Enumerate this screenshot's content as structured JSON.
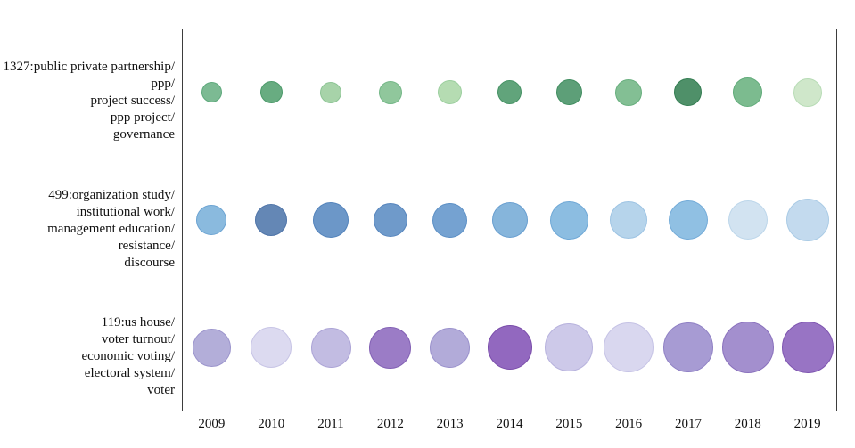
{
  "chart_data": {
    "type": "scatter",
    "subtype": "bubble-timeline",
    "title": "",
    "xlabel": "",
    "ylabel": "",
    "legend": "none",
    "grid": false,
    "frame_color": "#3d3d3d",
    "x_categories": [
      "2009",
      "2010",
      "2011",
      "2012",
      "2013",
      "2014",
      "2015",
      "2016",
      "2017",
      "2018",
      "2019"
    ],
    "rows": [
      {
        "id": "topic-1327",
        "label_lines": [
          "1327:public private partnership/",
          "ppp/",
          "project success/",
          "ppp project/",
          "governance"
        ],
        "color_family": "green",
        "bubbles": [
          {
            "year": "2009",
            "diameter": 23,
            "fill": "#7cba93",
            "stroke": "#5ea97c"
          },
          {
            "year": "2010",
            "diameter": 25,
            "fill": "#68ac81",
            "stroke": "#4c9a6a"
          },
          {
            "year": "2011",
            "diameter": 24,
            "fill": "#a7d3a9",
            "stroke": "#8cc494"
          },
          {
            "year": "2012",
            "diameter": 26,
            "fill": "#90c79c",
            "stroke": "#74b787"
          },
          {
            "year": "2013",
            "diameter": 27,
            "fill": "#b5dcb2",
            "stroke": "#9ccf9f"
          },
          {
            "year": "2014",
            "diameter": 27,
            "fill": "#61a47b",
            "stroke": "#459264"
          },
          {
            "year": "2015",
            "diameter": 29,
            "fill": "#5d9f78",
            "stroke": "#428e61"
          },
          {
            "year": "2016",
            "diameter": 30,
            "fill": "#83bf94",
            "stroke": "#68af7e"
          },
          {
            "year": "2017",
            "diameter": 31,
            "fill": "#4f9069",
            "stroke": "#357e53"
          },
          {
            "year": "2018",
            "diameter": 33,
            "fill": "#7cbb8f",
            "stroke": "#60ab79"
          },
          {
            "year": "2019",
            "diameter": 32,
            "fill": "#cfe7ca",
            "stroke": "#b8dcb6"
          }
        ]
      },
      {
        "id": "topic-499",
        "label_lines": [
          "499:organization study/",
          "institutional work/",
          "management education/",
          "resistance/",
          "discourse"
        ],
        "color_family": "blue",
        "bubbles": [
          {
            "year": "2009",
            "diameter": 34,
            "fill": "#8abade",
            "stroke": "#6ba3d2"
          },
          {
            "year": "2010",
            "diameter": 36,
            "fill": "#6487b5",
            "stroke": "#4f74a8"
          },
          {
            "year": "2011",
            "diameter": 40,
            "fill": "#6c97c8",
            "stroke": "#5383bb"
          },
          {
            "year": "2012",
            "diameter": 38,
            "fill": "#6f9aca",
            "stroke": "#5685bd"
          },
          {
            "year": "2013",
            "diameter": 39,
            "fill": "#75a2d1",
            "stroke": "#5b8fc5"
          },
          {
            "year": "2014",
            "diameter": 40,
            "fill": "#86b5db",
            "stroke": "#699fd0"
          },
          {
            "year": "2015",
            "diameter": 43,
            "fill": "#8cbde1",
            "stroke": "#6fa8d6"
          },
          {
            "year": "2016",
            "diameter": 42,
            "fill": "#b6d4eb",
            "stroke": "#9cc3e3"
          },
          {
            "year": "2017",
            "diameter": 44,
            "fill": "#90c0e3",
            "stroke": "#73abd8"
          },
          {
            "year": "2018",
            "diameter": 44,
            "fill": "#d2e3f1",
            "stroke": "#bcd6ea"
          },
          {
            "year": "2019",
            "diameter": 48,
            "fill": "#c3daee",
            "stroke": "#aacbe5"
          }
        ]
      },
      {
        "id": "topic-119",
        "label_lines": [
          "119:us house/",
          "voter turnout/",
          "economic voting/",
          "electoral system/",
          "voter"
        ],
        "color_family": "purple",
        "bubbles": [
          {
            "year": "2009",
            "diameter": 43,
            "fill": "#b3aed9",
            "stroke": "#9b94cc"
          },
          {
            "year": "2010",
            "diameter": 46,
            "fill": "#dcdaf0",
            "stroke": "#c8c5e6"
          },
          {
            "year": "2011",
            "diameter": 45,
            "fill": "#c2bce2",
            "stroke": "#aca4d6"
          },
          {
            "year": "2012",
            "diameter": 47,
            "fill": "#9b7cc6",
            "stroke": "#8260b4"
          },
          {
            "year": "2013",
            "diameter": 45,
            "fill": "#b2abd9",
            "stroke": "#9a91cc"
          },
          {
            "year": "2014",
            "diameter": 50,
            "fill": "#9268bf",
            "stroke": "#7a4daa"
          },
          {
            "year": "2015",
            "diameter": 54,
            "fill": "#cdc9e9",
            "stroke": "#b7b2dd"
          },
          {
            "year": "2016",
            "diameter": 56,
            "fill": "#d9d7ef",
            "stroke": "#c5c2e5"
          },
          {
            "year": "2017",
            "diameter": 56,
            "fill": "#a79bd3",
            "stroke": "#8f80c4"
          },
          {
            "year": "2018",
            "diameter": 58,
            "fill": "#a38fce",
            "stroke": "#8a71bd"
          },
          {
            "year": "2019",
            "diameter": 58,
            "fill": "#9874c4",
            "stroke": "#7e55b0"
          }
        ]
      }
    ]
  }
}
